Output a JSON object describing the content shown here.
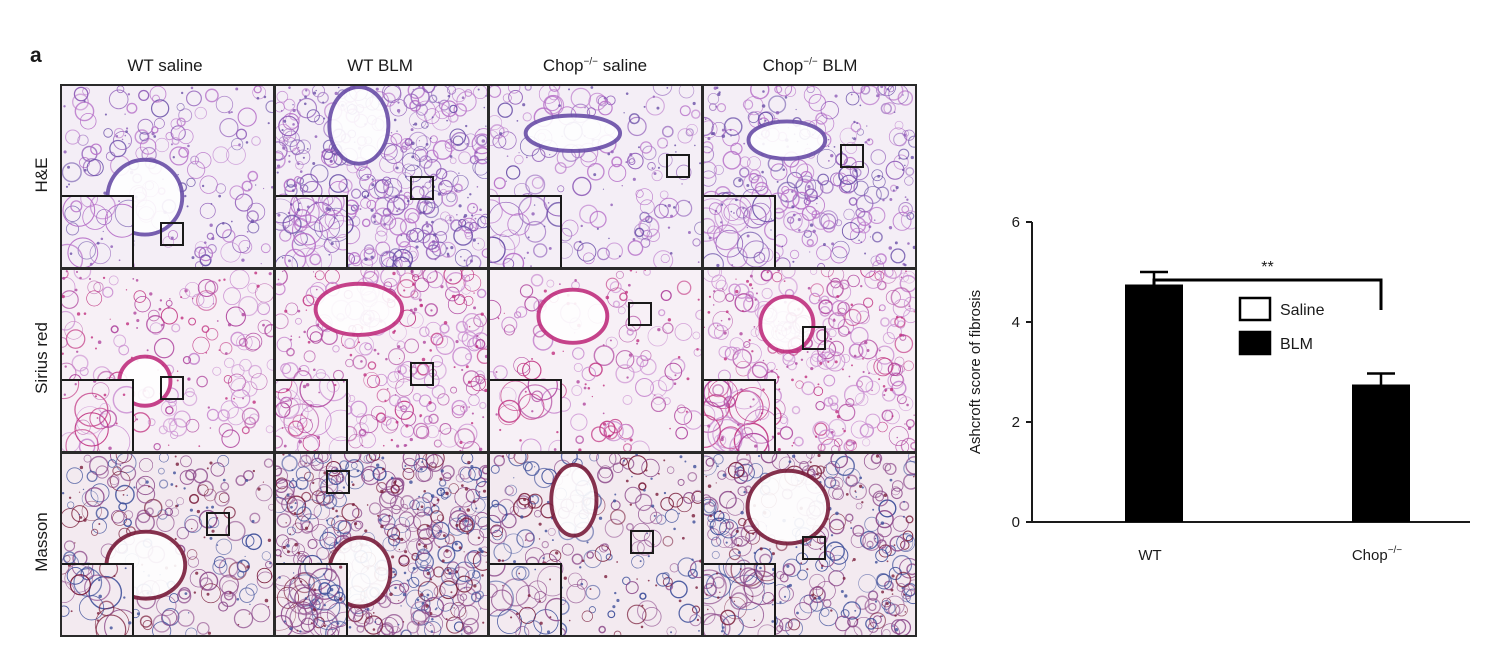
{
  "figure": {
    "panel_letter": "a",
    "columns": [
      {
        "main": "WT saline",
        "sup": ""
      },
      {
        "main": "WT BLM",
        "sup": ""
      },
      {
        "main": "Chop",
        "sup": "−/−",
        "tail": " saline"
      },
      {
        "main": "Chop",
        "sup": "−/−",
        "tail": " BLM"
      }
    ],
    "rows": [
      "H&E",
      "Sirius red",
      "Masson"
    ],
    "stain_colors": {
      "H&E": {
        "bg": "#f4eef6",
        "tissue": "#b873c9",
        "dense": "#8f5cb8",
        "accent": "#6a4fa8"
      },
      "Sirius red": {
        "bg": "#f7f0f6",
        "tissue": "#c98bd0",
        "dense": "#b0479f",
        "accent": "#c0307f"
      },
      "Masson": {
        "bg": "#f3eaf0",
        "tissue": "#8e4c8c",
        "dense": "#3e4f9a",
        "accent": "#7a1e3c"
      }
    }
  },
  "chart_data": {
    "type": "bar",
    "categories": [
      "WT",
      "Chop"
    ],
    "category_sup": [
      "",
      "−/−"
    ],
    "series": [
      {
        "name": "Saline",
        "values": [
          0,
          0
        ],
        "color": "#ffffff"
      },
      {
        "name": "BLM",
        "values": [
          4.75,
          2.75
        ],
        "errors": [
          0.25,
          0.22
        ],
        "color": "#000000"
      }
    ],
    "ylabel": "Ashcroft score of fibrosis",
    "ylim": [
      0,
      6
    ],
    "yticks": [
      0,
      2,
      4,
      6
    ],
    "legend": "upper-center",
    "annotation": {
      "text": "**",
      "between": [
        "WT",
        "Chop"
      ]
    }
  }
}
